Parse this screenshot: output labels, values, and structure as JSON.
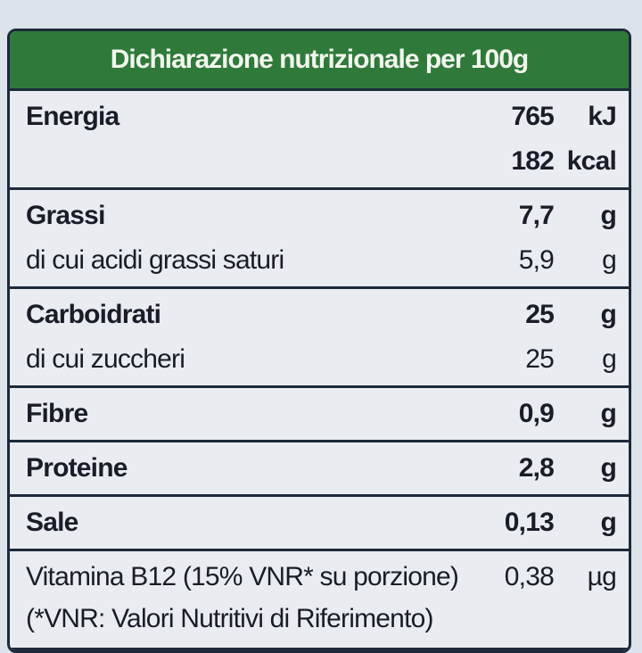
{
  "header": {
    "title": "Dichiarazione nutrizionale per 100g"
  },
  "rows": [
    {
      "lines": [
        {
          "label": "Energia",
          "value": "765",
          "unit": "kJ",
          "bold": true
        },
        {
          "value": "182",
          "unit": "kcal",
          "bold": true
        }
      ]
    },
    {
      "lines": [
        {
          "label": "Grassi",
          "value": "7,7",
          "unit": "g",
          "bold": true
        },
        {
          "label": "di cui acidi grassi saturi",
          "value": "5,9",
          "unit": "g",
          "bold": false
        }
      ]
    },
    {
      "lines": [
        {
          "label": "Carboidrati",
          "value": "25",
          "unit": "g",
          "bold": true
        },
        {
          "label": "di cui zuccheri",
          "value": "25",
          "unit": "g",
          "bold": false
        }
      ]
    },
    {
      "lines": [
        {
          "label": "Fibre",
          "value": "0,9",
          "unit": "g",
          "bold": true
        }
      ]
    },
    {
      "lines": [
        {
          "label": "Proteine",
          "value": "2,8",
          "unit": "g",
          "bold": true
        }
      ]
    },
    {
      "lines": [
        {
          "label": "Sale",
          "value": "0,13",
          "unit": "g",
          "bold": true
        }
      ]
    },
    {
      "lines": [
        {
          "label": "Vitamina B12 (15% VNR* su porzione)",
          "value": "0,38",
          "unit": "µg",
          "bold": false
        }
      ],
      "note": "(*VNR: Valori Nutritivi di Riferimento)"
    }
  ]
}
